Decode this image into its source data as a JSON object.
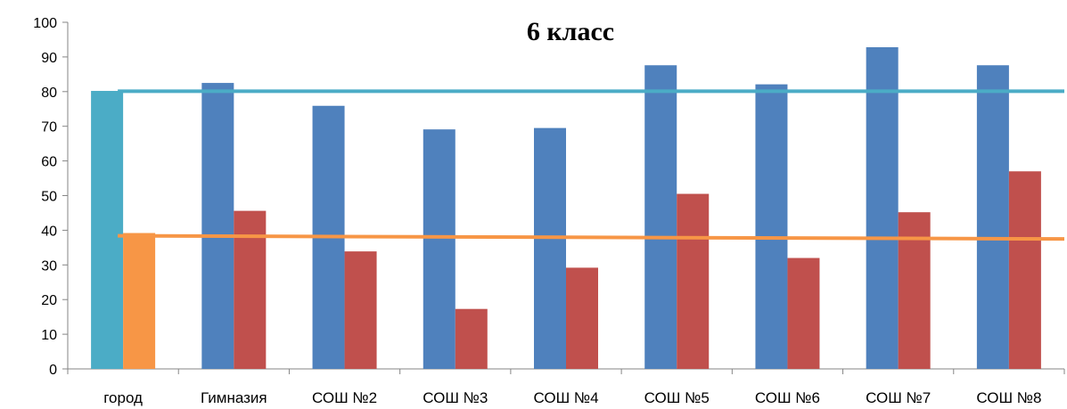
{
  "chart_data": {
    "type": "bar",
    "title": "6 класс",
    "xlabel": "",
    "ylabel": "",
    "ylim": [
      0,
      100
    ],
    "yticks": [
      0,
      10,
      20,
      30,
      40,
      50,
      60,
      70,
      80,
      90,
      100
    ],
    "grid": false,
    "legend": "none",
    "categories": [
      "город",
      "Гимназия",
      "СОШ №2",
      "СОШ №3",
      "СОШ №4",
      "СОШ №5",
      "СОШ №6",
      "СОШ №7",
      "СОШ №8"
    ],
    "series": [
      {
        "values": [
          80.2,
          82.5,
          75.9,
          69.1,
          69.5,
          87.6,
          82.1,
          92.8,
          87.6
        ],
        "color": "#4F81BD",
        "highlight_colors": [
          "#4BACC6",
          null,
          null,
          null,
          null,
          null,
          null,
          null,
          null
        ]
      },
      {
        "values": [
          39.2,
          45.6,
          33.9,
          17.3,
          29.2,
          50.5,
          32.0,
          45.2,
          57.0
        ],
        "color": "#C0504D",
        "highlight_colors": [
          "#F79646",
          null,
          null,
          null,
          null,
          null,
          null,
          null,
          null
        ]
      }
    ],
    "reference_lines": [
      {
        "y_start": 80.1,
        "y_end": 80.1,
        "color": "#4BACC6"
      },
      {
        "y_start": 38.4,
        "y_end": 37.5,
        "color": "#F79646"
      }
    ]
  }
}
